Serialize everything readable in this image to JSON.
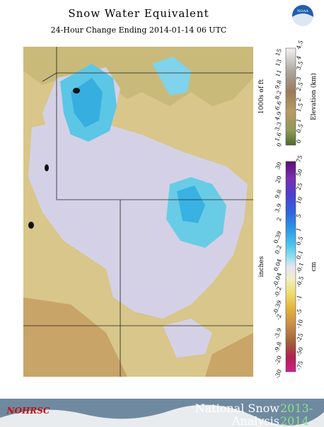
{
  "header": {
    "title": "Snow Water Equivalent",
    "subtitle": "24-Hour Change Ending 2014-01-14 06 UTC",
    "logo": "NOAA"
  },
  "elevation_legend": {
    "left_unit": "1000s of ft",
    "left_labels": [
      "0",
      "1.6",
      "3.3",
      "4.9",
      "6.6",
      "8.2",
      "9.8",
      "11",
      "13",
      "15"
    ],
    "right_unit": "Elevation (km)",
    "right_labels": [
      "0",
      "0.5",
      "1",
      "1.5",
      "2",
      "2.5",
      "3",
      "3.5",
      "4",
      "4.5"
    ]
  },
  "swe_legend": {
    "left_unit": "inches",
    "left_labels": [
      "30",
      "20",
      "9.8",
      "3.9",
      "2",
      "0.39",
      "0.2",
      "0.04",
      "-0.04",
      "-0.2",
      "-0.39",
      "-2",
      "-3.9",
      "-9.8",
      "-20",
      "-30"
    ],
    "right_unit": "cm",
    "right_labels": [
      "75",
      "50",
      "25",
      "10",
      "5",
      "1",
      "0.5",
      "0.1",
      "-0.1",
      "-0.5",
      "-1",
      "-5",
      "-10",
      "-25",
      "-50",
      "-75"
    ]
  },
  "footer": {
    "logo": "NOHRSC",
    "line1": "National Snow",
    "year1": "2013-",
    "line2": "Analysis",
    "year2": "2014"
  }
}
